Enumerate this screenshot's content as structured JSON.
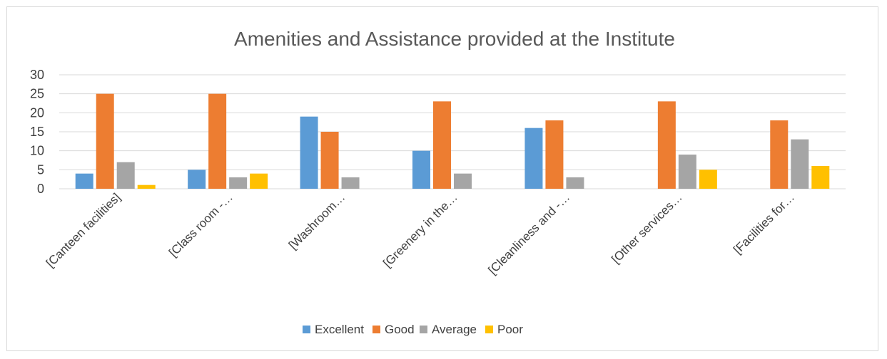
{
  "chart_data": {
    "type": "bar",
    "title": "Amenities and Assistance provided at the Institute",
    "categories": [
      "[Canteen facilities]",
      "[Class room -…",
      "[Washroom…",
      "[Greenery in the…",
      "[Cleanliness and -…",
      "[Other services…",
      "[Facilities for…"
    ],
    "series": [
      {
        "name": "Excellent",
        "color": "#5b9bd5",
        "values": [
          4,
          5,
          19,
          10,
          16,
          0,
          0
        ]
      },
      {
        "name": "Good",
        "color": "#ed7d31",
        "values": [
          25,
          25,
          15,
          23,
          18,
          23,
          18
        ]
      },
      {
        "name": "Average",
        "color": "#a5a5a5",
        "values": [
          7,
          3,
          3,
          4,
          3,
          9,
          13
        ]
      },
      {
        "name": "Poor",
        "color": "#ffc000",
        "values": [
          1,
          4,
          0,
          0,
          0,
          5,
          6
        ]
      }
    ],
    "ylim": [
      0,
      30
    ],
    "yticks": [
      0,
      5,
      10,
      15,
      20,
      25,
      30
    ],
    "grid": true,
    "legend_position": "bottom"
  }
}
